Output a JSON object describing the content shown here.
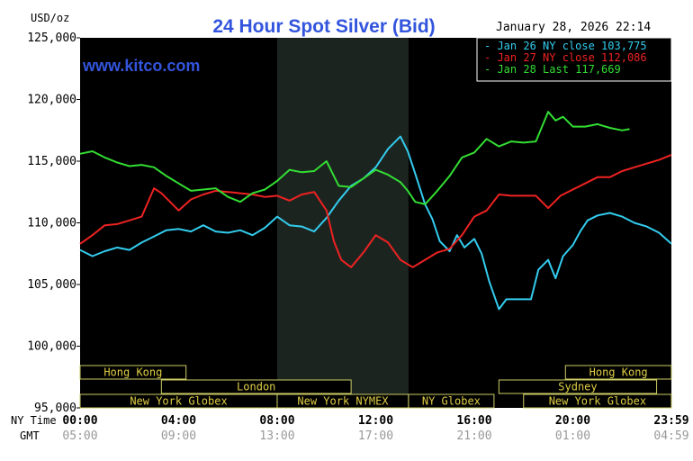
{
  "chart_data": {
    "type": "line",
    "title": "24 Hour Spot Silver (Bid)",
    "brand": "www.kitco.com",
    "datetime": "January 28, 2026 22:14",
    "ylabel": "USD/oz",
    "ylim": [
      95000,
      125000
    ],
    "y_ticks": [
      "125,000",
      "120,000",
      "115,000",
      "110,000",
      "105,000",
      "100,000",
      "95,000"
    ],
    "y_tick_values": [
      125000,
      120000,
      115000,
      110000,
      105000,
      100000,
      95000
    ],
    "x_range_hours": [
      0,
      24
    ],
    "x_row_ny_label": "NY Time",
    "x_row_gmt_label": "GMT",
    "x_ticks_ny": [
      "00:00",
      "04:00",
      "08:00",
      "12:00",
      "16:00",
      "20:00",
      "23:59"
    ],
    "x_ticks_gmt": [
      "05:00",
      "09:00",
      "13:00",
      "17:00",
      "21:00",
      "01:00",
      "04:59"
    ],
    "x_tick_hours": [
      0,
      4,
      8,
      12,
      16,
      20,
      24
    ],
    "shaded_region_hours": [
      8.0,
      13.33
    ],
    "grid": false,
    "legend_position": "top-right",
    "colors": {
      "background": "#000000",
      "shaded": "#1c2420",
      "title": "#3355dd",
      "brand": "#3355dd",
      "axis_text": "#000000",
      "gmt_text": "#999999",
      "session_fill": "#000000",
      "session_border": "#cccc66",
      "session_text": "#ddcc44"
    },
    "series": [
      {
        "name": "Jan 26 NY close 103,775",
        "color": "#33ccee",
        "points": [
          [
            0,
            107800
          ],
          [
            0.5,
            107300
          ],
          [
            1,
            107700
          ],
          [
            1.5,
            108000
          ],
          [
            2,
            107800
          ],
          [
            2.5,
            108400
          ],
          [
            3,
            108900
          ],
          [
            3.5,
            109400
          ],
          [
            4,
            109500
          ],
          [
            4.5,
            109300
          ],
          [
            5,
            109800
          ],
          [
            5.5,
            109300
          ],
          [
            6,
            109200
          ],
          [
            6.5,
            109400
          ],
          [
            7,
            109000
          ],
          [
            7.5,
            109600
          ],
          [
            8,
            110500
          ],
          [
            8.5,
            109800
          ],
          [
            9,
            109700
          ],
          [
            9.5,
            109300
          ],
          [
            10,
            110400
          ],
          [
            10.5,
            111800
          ],
          [
            11,
            113000
          ],
          [
            11.5,
            113600
          ],
          [
            12,
            114500
          ],
          [
            12.5,
            116000
          ],
          [
            13,
            117000
          ],
          [
            13.3,
            115800
          ],
          [
            13.6,
            114000
          ],
          [
            14,
            111500
          ],
          [
            14.3,
            110300
          ],
          [
            14.6,
            108500
          ],
          [
            15,
            107700
          ],
          [
            15.3,
            109000
          ],
          [
            15.6,
            108000
          ],
          [
            16,
            108700
          ],
          [
            16.3,
            107500
          ],
          [
            16.6,
            105300
          ],
          [
            17,
            103000
          ],
          [
            17.3,
            103800
          ],
          [
            17.6,
            103800
          ],
          [
            18,
            103800
          ],
          [
            18.3,
            103800
          ],
          [
            18.6,
            106200
          ],
          [
            19,
            107000
          ],
          [
            19.3,
            105500
          ],
          [
            19.6,
            107300
          ],
          [
            20,
            108200
          ],
          [
            20.3,
            109300
          ],
          [
            20.6,
            110200
          ],
          [
            21,
            110600
          ],
          [
            21.5,
            110800
          ],
          [
            22,
            110500
          ],
          [
            22.5,
            110000
          ],
          [
            23,
            109700
          ],
          [
            23.5,
            109200
          ],
          [
            24,
            108300
          ]
        ]
      },
      {
        "name": "Jan 27 NY close 112,086",
        "color": "#ee2222",
        "points": [
          [
            0,
            108300
          ],
          [
            0.5,
            109000
          ],
          [
            1,
            109800
          ],
          [
            1.5,
            109900
          ],
          [
            2,
            110200
          ],
          [
            2.5,
            110500
          ],
          [
            3,
            112800
          ],
          [
            3.3,
            112400
          ],
          [
            3.6,
            111800
          ],
          [
            4,
            111000
          ],
          [
            4.5,
            111900
          ],
          [
            5,
            112300
          ],
          [
            5.5,
            112600
          ],
          [
            6,
            112500
          ],
          [
            6.5,
            112400
          ],
          [
            7,
            112300
          ],
          [
            7.5,
            112100
          ],
          [
            8,
            112200
          ],
          [
            8.5,
            111800
          ],
          [
            9,
            112300
          ],
          [
            9.5,
            112500
          ],
          [
            10,
            111000
          ],
          [
            10.3,
            108500
          ],
          [
            10.6,
            107000
          ],
          [
            11,
            106400
          ],
          [
            11.5,
            107600
          ],
          [
            12,
            109000
          ],
          [
            12.5,
            108400
          ],
          [
            13,
            107000
          ],
          [
            13.5,
            106400
          ],
          [
            14,
            107000
          ],
          [
            14.5,
            107600
          ],
          [
            15,
            107900
          ],
          [
            15.5,
            109000
          ],
          [
            16,
            110500
          ],
          [
            16.5,
            111000
          ],
          [
            17,
            112300
          ],
          [
            17.5,
            112200
          ],
          [
            18,
            112200
          ],
          [
            18.5,
            112200
          ],
          [
            19,
            111200
          ],
          [
            19.5,
            112200
          ],
          [
            20,
            112700
          ],
          [
            20.5,
            113200
          ],
          [
            21,
            113700
          ],
          [
            21.5,
            113700
          ],
          [
            22,
            114200
          ],
          [
            22.5,
            114500
          ],
          [
            23,
            114800
          ],
          [
            23.5,
            115100
          ],
          [
            24,
            115500
          ]
        ]
      },
      {
        "name": "Jan 28 Last 117,669",
        "color": "#33dd33",
        "points": [
          [
            0,
            115600
          ],
          [
            0.5,
            115800
          ],
          [
            1,
            115300
          ],
          [
            1.5,
            114900
          ],
          [
            2,
            114600
          ],
          [
            2.5,
            114700
          ],
          [
            3,
            114500
          ],
          [
            3.5,
            113800
          ],
          [
            4,
            113200
          ],
          [
            4.5,
            112600
          ],
          [
            5,
            112700
          ],
          [
            5.5,
            112800
          ],
          [
            6,
            112100
          ],
          [
            6.5,
            111700
          ],
          [
            7,
            112400
          ],
          [
            7.5,
            112700
          ],
          [
            8,
            113400
          ],
          [
            8.5,
            114300
          ],
          [
            9,
            114100
          ],
          [
            9.5,
            114200
          ],
          [
            10,
            115000
          ],
          [
            10.5,
            113000
          ],
          [
            11,
            112900
          ],
          [
            11.5,
            113600
          ],
          [
            12,
            114300
          ],
          [
            12.5,
            113900
          ],
          [
            13,
            113300
          ],
          [
            13.3,
            112600
          ],
          [
            13.6,
            111700
          ],
          [
            14,
            111500
          ],
          [
            14.5,
            112600
          ],
          [
            15,
            113800
          ],
          [
            15.5,
            115300
          ],
          [
            16,
            115700
          ],
          [
            16.5,
            116800
          ],
          [
            17,
            116200
          ],
          [
            17.5,
            116600
          ],
          [
            18,
            116500
          ],
          [
            18.5,
            116600
          ],
          [
            19,
            119000
          ],
          [
            19.3,
            118300
          ],
          [
            19.6,
            118600
          ],
          [
            20,
            117800
          ],
          [
            20.5,
            117800
          ],
          [
            21,
            118000
          ],
          [
            21.5,
            117700
          ],
          [
            22,
            117500
          ],
          [
            22.3,
            117600
          ]
        ]
      }
    ],
    "sessions": [
      {
        "label": "Hong Kong",
        "start": 0,
        "end": 4.3,
        "row": 0
      },
      {
        "label": "London",
        "start": 3.3,
        "end": 11.0,
        "row": 1
      },
      {
        "label": "New York Globex",
        "start": 0,
        "end": 8.0,
        "row": 2
      },
      {
        "label": "New York NYMEX",
        "start": 8.0,
        "end": 13.33,
        "row": 2
      },
      {
        "label": "NY Globex",
        "start": 13.33,
        "end": 16.8,
        "row": 2
      },
      {
        "label": "Hong Kong",
        "start": 19.7,
        "end": 24,
        "row": 0
      },
      {
        "label": "Sydney",
        "start": 17.0,
        "end": 23.4,
        "row": 1
      },
      {
        "label": "New York Globex",
        "start": 18.0,
        "end": 24,
        "row": 2
      }
    ]
  }
}
